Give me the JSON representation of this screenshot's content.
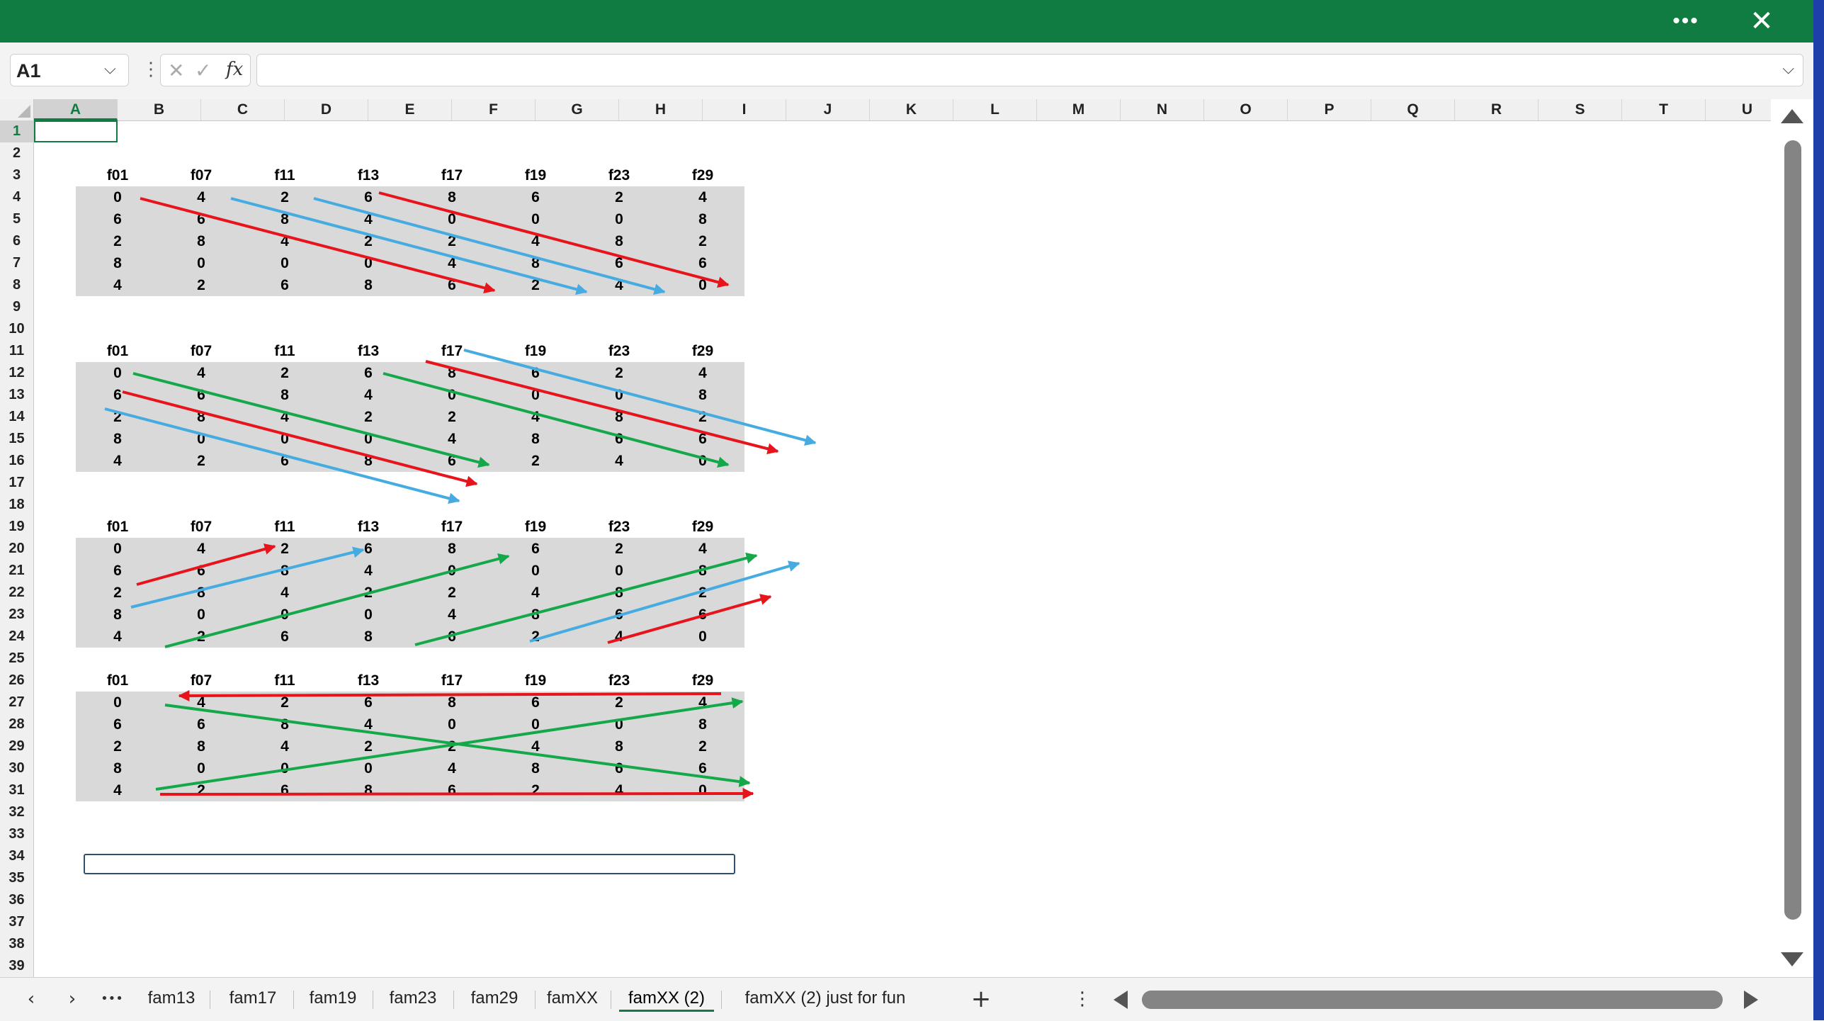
{
  "titlebar": {
    "more_label": "•••",
    "close_label": "✕"
  },
  "formula_bar": {
    "name_box": "A1",
    "name_chevron": "⌵",
    "separator": "⋮",
    "cancel": "✕",
    "enter": "✓",
    "fx": "fx",
    "value": "",
    "expand": "⌵"
  },
  "columns": [
    "A",
    "B",
    "C",
    "D",
    "E",
    "F",
    "G",
    "H",
    "I",
    "J",
    "K",
    "L",
    "M",
    "N",
    "O",
    "P",
    "Q",
    "R",
    "S",
    "T",
    "U"
  ],
  "selected_column": "A",
  "rows": [
    "1",
    "2",
    "3",
    "4",
    "5",
    "6",
    "7",
    "8",
    "9",
    "10",
    "11",
    "12",
    "13",
    "14",
    "15",
    "16",
    "17",
    "18",
    "19",
    "20",
    "21",
    "22",
    "23",
    "24",
    "25",
    "26",
    "27",
    "28",
    "29",
    "30",
    "31",
    "32",
    "33",
    "34",
    "35",
    "36",
    "37",
    "38",
    "39"
  ],
  "selected_row": "1",
  "active_cell": "A1",
  "tables": [
    {
      "header_row": 3,
      "headers": [
        "f01",
        "f07",
        "f11",
        "f13",
        "f17",
        "f19",
        "f23",
        "f29"
      ],
      "rows": [
        [
          "0",
          "4",
          "2",
          "6",
          "8",
          "6",
          "2",
          "4"
        ],
        [
          "6",
          "6",
          "8",
          "4",
          "0",
          "0",
          "0",
          "8"
        ],
        [
          "2",
          "8",
          "4",
          "2",
          "2",
          "4",
          "8",
          "2"
        ],
        [
          "8",
          "0",
          "0",
          "0",
          "4",
          "8",
          "6",
          "6"
        ],
        [
          "4",
          "2",
          "6",
          "8",
          "6",
          "2",
          "4",
          "0"
        ]
      ]
    },
    {
      "header_row": 11,
      "headers": [
        "f01",
        "f07",
        "f11",
        "f13",
        "f17",
        "f19",
        "f23",
        "f29"
      ],
      "rows": [
        [
          "0",
          "4",
          "2",
          "6",
          "8",
          "6",
          "2",
          "4"
        ],
        [
          "6",
          "6",
          "8",
          "4",
          "0",
          "0",
          "0",
          "8"
        ],
        [
          "2",
          "8",
          "4",
          "2",
          "2",
          "4",
          "8",
          "2"
        ],
        [
          "8",
          "0",
          "0",
          "0",
          "4",
          "8",
          "6",
          "6"
        ],
        [
          "4",
          "2",
          "6",
          "8",
          "6",
          "2",
          "4",
          "0"
        ]
      ]
    },
    {
      "header_row": 19,
      "headers": [
        "f01",
        "f07",
        "f11",
        "f13",
        "f17",
        "f19",
        "f23",
        "f29"
      ],
      "rows": [
        [
          "0",
          "4",
          "2",
          "6",
          "8",
          "6",
          "2",
          "4"
        ],
        [
          "6",
          "6",
          "8",
          "4",
          "0",
          "0",
          "0",
          "8"
        ],
        [
          "2",
          "8",
          "4",
          "2",
          "2",
          "4",
          "8",
          "2"
        ],
        [
          "8",
          "0",
          "0",
          "0",
          "4",
          "8",
          "6",
          "6"
        ],
        [
          "4",
          "2",
          "6",
          "8",
          "6",
          "2",
          "4",
          "0"
        ]
      ]
    },
    {
      "header_row": 26,
      "headers": [
        "f01",
        "f07",
        "f11",
        "f13",
        "f17",
        "f19",
        "f23",
        "f29"
      ],
      "rows": [
        [
          "0",
          "4",
          "2",
          "6",
          "8",
          "6",
          "2",
          "4"
        ],
        [
          "6",
          "6",
          "8",
          "4",
          "0",
          "0",
          "0",
          "8"
        ],
        [
          "2",
          "8",
          "4",
          "2",
          "2",
          "4",
          "8",
          "2"
        ],
        [
          "8",
          "0",
          "0",
          "0",
          "4",
          "8",
          "6",
          "6"
        ],
        [
          "4",
          "2",
          "6",
          "8",
          "6",
          "2",
          "4",
          "0"
        ]
      ]
    }
  ],
  "colors": {
    "excel_green": "#107c41",
    "arrow_red": "#e8141c",
    "arrow_blue": "#45abe0",
    "arrow_green": "#14a84a",
    "table_shade": "#d9d9d9"
  },
  "sheet_nav": {
    "prev": "‹",
    "next": "›",
    "more": "•••",
    "add": "+",
    "options": "⋮"
  },
  "sheet_tabs": [
    {
      "label": "fam13",
      "active": false
    },
    {
      "label": "fam17",
      "active": false
    },
    {
      "label": "fam19",
      "active": false
    },
    {
      "label": "fam23",
      "active": false
    },
    {
      "label": "fam29",
      "active": false
    },
    {
      "label": "famXX",
      "active": false
    },
    {
      "label": "famXX (2)",
      "active": true
    },
    {
      "label": "famXX (2) just for fun",
      "active": false
    }
  ]
}
